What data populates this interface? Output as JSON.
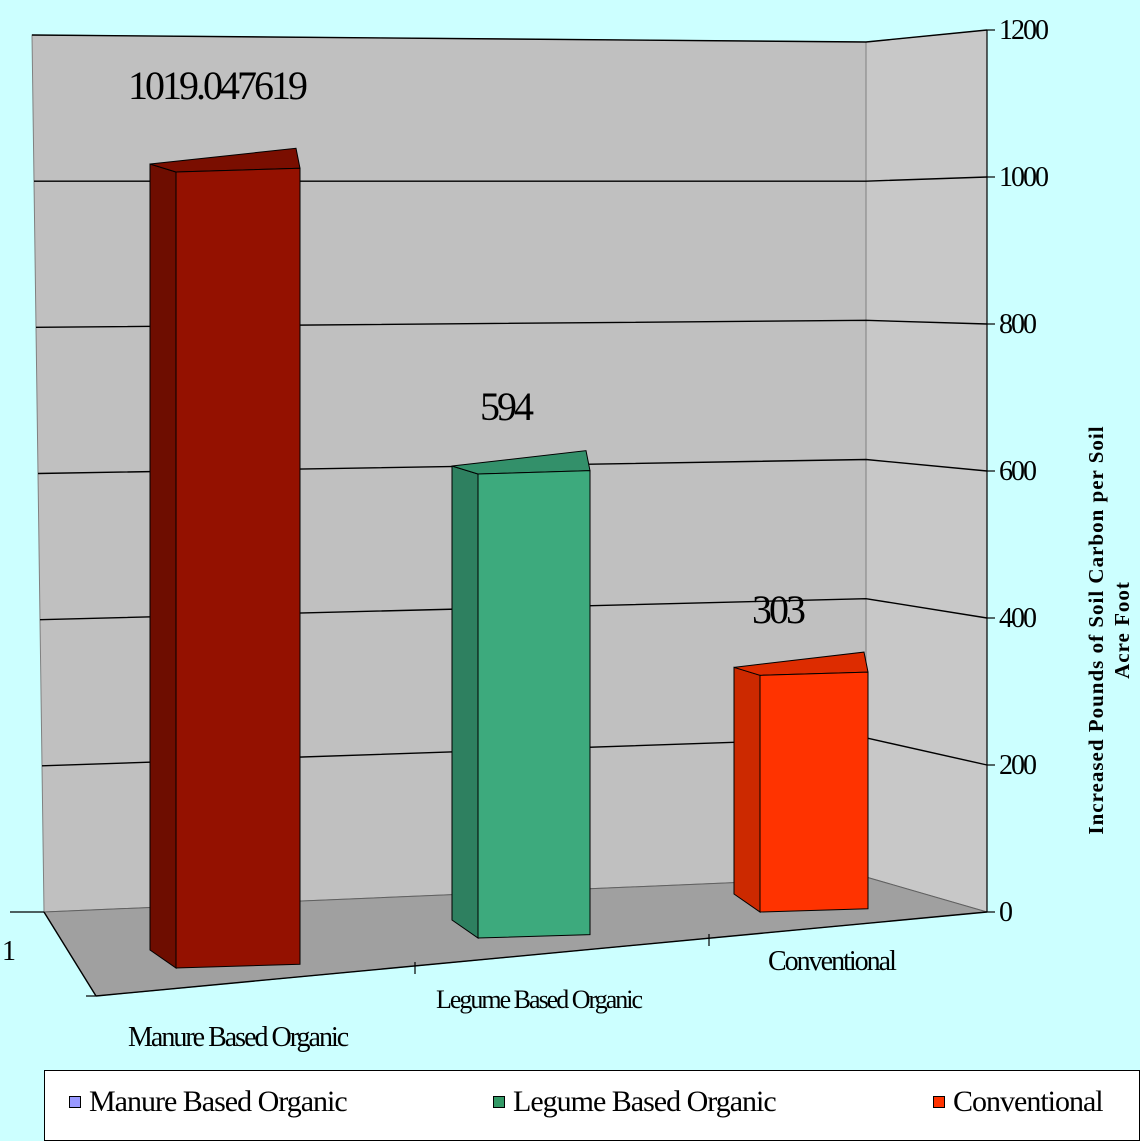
{
  "chart_data": {
    "type": "bar",
    "categories": [
      "Manure Based Organic",
      "Legume Based Organic",
      "Conventional"
    ],
    "values": [
      1019.047619,
      594,
      303
    ],
    "data_labels": [
      "1019.047619",
      "594",
      "303"
    ],
    "y_ticks": [
      0,
      200,
      400,
      600,
      800,
      1000,
      1200
    ],
    "ylim": [
      0,
      1200
    ],
    "ylabel_lines": [
      "Increased Pounds of Soil Carbon per Soil",
      "Acre Foot"
    ],
    "series_axis_label": "1",
    "grid": true,
    "legend_position": "bottom",
    "bar_colors": [
      "#941100",
      "#3daa7d",
      "#ff3300"
    ],
    "bar_side_colors": [
      "#6e0d00",
      "#2e8060",
      "#cc2900"
    ],
    "bar_top_colors": [
      "#7a0e00",
      "#33906a",
      "#dd2c00"
    ]
  },
  "legend": {
    "items": [
      {
        "label": "Manure Based Organic",
        "swatch": "#9999ff"
      },
      {
        "label": "Legume Based Organic",
        "swatch": "#339966"
      },
      {
        "label": "Conventional",
        "swatch": "#ff3300"
      }
    ]
  }
}
